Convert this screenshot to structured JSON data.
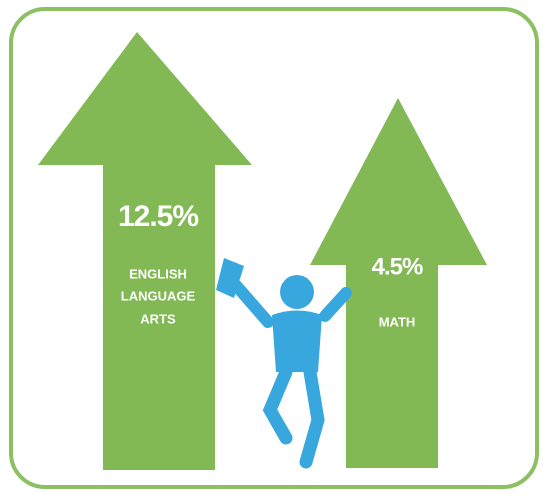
{
  "arrows": [
    {
      "value": "12.5%",
      "label_lines": [
        "ENGLISH",
        "LANGUAGE",
        "ARTS"
      ]
    },
    {
      "value": "4.5%",
      "label_lines": [
        "MATH"
      ]
    }
  ]
}
